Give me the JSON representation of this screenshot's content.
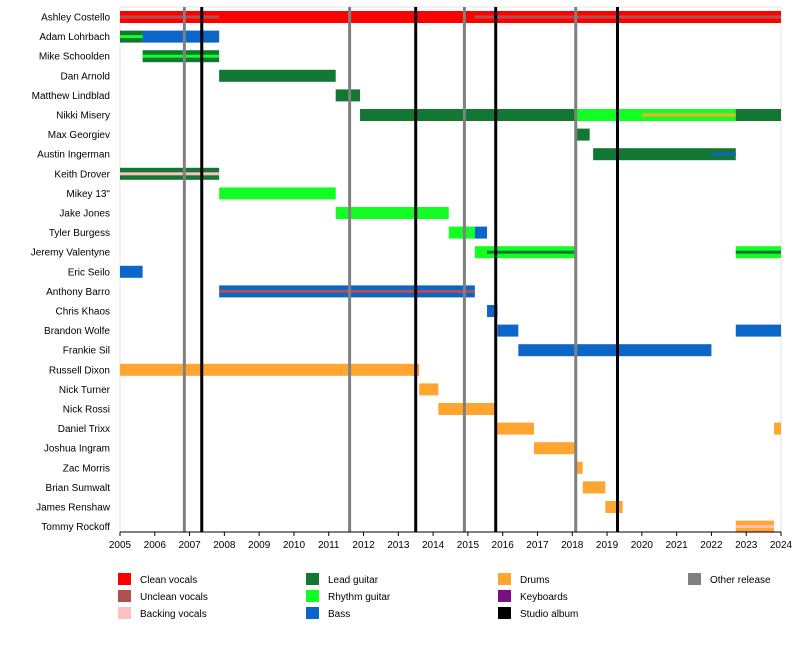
{
  "chart_data": {
    "type": "timeline",
    "x_axis": {
      "min": 2005,
      "max": 2024,
      "ticks": [
        "2005",
        "2006",
        "2007",
        "2008",
        "2009",
        "2010",
        "2011",
        "2012",
        "2013",
        "2014",
        "2015",
        "2016",
        "2017",
        "2018",
        "2019",
        "2020",
        "2021",
        "2022",
        "2023",
        "2024"
      ]
    },
    "grid": false,
    "legend_position": "bottom",
    "roles": [
      {
        "id": "clean",
        "label": "Clean vocals",
        "color": "#ff0000"
      },
      {
        "id": "unclean",
        "label": "Unclean vocals",
        "color": "#b05050"
      },
      {
        "id": "backing",
        "label": "Backing vocals",
        "color": "#ffc0c0"
      },
      {
        "id": "lead",
        "label": "Lead guitar",
        "color": "#117733"
      },
      {
        "id": "rhythm",
        "label": "Rhythm guitar",
        "color": "#11ff22"
      },
      {
        "id": "bass",
        "label": "Bass",
        "color": "#0b66c8"
      },
      {
        "id": "drums",
        "label": "Drums",
        "color": "#ffa530"
      },
      {
        "id": "keys",
        "label": "Keyboards",
        "color": "#7a0f80"
      },
      {
        "id": "studio",
        "label": "Studio album",
        "color": "#000000"
      },
      {
        "id": "other",
        "label": "Other release",
        "color": "#808080"
      }
    ],
    "releases": {
      "studio": [
        2007.35,
        2013.5,
        2015.8,
        2019.3
      ],
      "other": [
        2006.85,
        2011.6,
        2014.9,
        2018.1
      ]
    },
    "members": [
      {
        "name": "Ashley Costello",
        "segments": [
          {
            "start": 2005,
            "end": 2024,
            "role": "clean"
          },
          {
            "start": 2005,
            "end": 2007.85,
            "role": "unclean",
            "stripe": true
          },
          {
            "start": 2015.2,
            "end": 2024,
            "role": "unclean",
            "stripe": true
          }
        ]
      },
      {
        "name": "Adam Lohrbach",
        "segments": [
          {
            "start": 2005,
            "end": 2005.65,
            "role": "lead"
          },
          {
            "start": 2005.65,
            "end": 2007.85,
            "role": "bass"
          },
          {
            "start": 2005,
            "end": 2005.65,
            "role": "rhythm",
            "stripe": true
          },
          {
            "start": 2005.65,
            "end": 2007.85,
            "role": "bass",
            "stripe": true
          }
        ]
      },
      {
        "name": "Mike Schoolden",
        "segments": [
          {
            "start": 2005.65,
            "end": 2007.85,
            "role": "lead"
          },
          {
            "start": 2005.65,
            "end": 2007.85,
            "role": "rhythm",
            "stripe": true
          }
        ]
      },
      {
        "name": "Dan Arnold",
        "segments": [
          {
            "start": 2007.85,
            "end": 2011.2,
            "role": "lead"
          }
        ]
      },
      {
        "name": "Matthew Lindblad",
        "segments": [
          {
            "start": 2011.2,
            "end": 2011.9,
            "role": "lead"
          }
        ]
      },
      {
        "name": "Nikki Misery",
        "segments": [
          {
            "start": 2011.9,
            "end": 2024,
            "role": "lead"
          },
          {
            "start": 2018.1,
            "end": 2022.7,
            "role": "rhythm"
          },
          {
            "start": 2020,
            "end": 2022.7,
            "role": "drums",
            "stripe": true
          }
        ]
      },
      {
        "name": "Max Georgiev",
        "segments": [
          {
            "start": 2018.1,
            "end": 2018.5,
            "role": "lead"
          }
        ]
      },
      {
        "name": "Austin Ingerman",
        "segments": [
          {
            "start": 2018.6,
            "end": 2022.7,
            "role": "lead"
          },
          {
            "start": 2022.0,
            "end": 2022.7,
            "role": "bass",
            "stripe": true
          }
        ]
      },
      {
        "name": "Keith Drover",
        "segments": [
          {
            "start": 2005,
            "end": 2007.85,
            "role": "lead"
          },
          {
            "start": 2005,
            "end": 2007.85,
            "role": "backing",
            "stripe": true
          }
        ]
      },
      {
        "name": "Mikey 13\"",
        "segments": [
          {
            "start": 2007.85,
            "end": 2011.2,
            "role": "rhythm"
          }
        ]
      },
      {
        "name": "Jake Jones",
        "segments": [
          {
            "start": 2011.2,
            "end": 2014.45,
            "role": "rhythm"
          }
        ]
      },
      {
        "name": "Tyler Burgess",
        "segments": [
          {
            "start": 2014.45,
            "end": 2015.2,
            "role": "rhythm"
          },
          {
            "start": 2015.2,
            "end": 2015.55,
            "role": "bass"
          },
          {
            "start": 2015.2,
            "end": 2015.55,
            "role": "bass",
            "stripe": true
          }
        ]
      },
      {
        "name": "Jeremy Valentyne",
        "segments": [
          {
            "start": 2015.2,
            "end": 2018.1,
            "role": "rhythm"
          },
          {
            "start": 2015.55,
            "end": 2018.1,
            "role": "lead",
            "stripe": true
          },
          {
            "start": 2022.7,
            "end": 2024,
            "role": "rhythm"
          },
          {
            "start": 2022.7,
            "end": 2024,
            "role": "lead",
            "stripe": true
          }
        ]
      },
      {
        "name": "Eric Seilo",
        "segments": [
          {
            "start": 2005,
            "end": 2005.65,
            "role": "bass"
          }
        ]
      },
      {
        "name": "Anthony Barro",
        "segments": [
          {
            "start": 2007.85,
            "end": 2015.2,
            "role": "bass"
          },
          {
            "start": 2007.85,
            "end": 2015.2,
            "role": "unclean",
            "stripe": true
          }
        ]
      },
      {
        "name": "Chris Khaos",
        "segments": [
          {
            "start": 2015.55,
            "end": 2015.85,
            "role": "bass"
          }
        ]
      },
      {
        "name": "Brandon Wolfe",
        "segments": [
          {
            "start": 2015.85,
            "end": 2016.45,
            "role": "bass"
          },
          {
            "start": 2022.7,
            "end": 2024,
            "role": "bass"
          }
        ]
      },
      {
        "name": "Frankie Sil",
        "segments": [
          {
            "start": 2016.45,
            "end": 2022.0,
            "role": "bass"
          }
        ]
      },
      {
        "name": "Russell Dixon",
        "segments": [
          {
            "start": 2005,
            "end": 2013.6,
            "role": "drums"
          }
        ]
      },
      {
        "name": "Nick Turner",
        "segments": [
          {
            "start": 2013.6,
            "end": 2014.15,
            "role": "drums"
          }
        ]
      },
      {
        "name": "Nick Rossi",
        "segments": [
          {
            "start": 2014.15,
            "end": 2015.8,
            "role": "drums"
          }
        ]
      },
      {
        "name": "Daniel Trixx",
        "segments": [
          {
            "start": 2015.8,
            "end": 2016.9,
            "role": "drums"
          },
          {
            "start": 2023.8,
            "end": 2024,
            "role": "drums"
          }
        ]
      },
      {
        "name": "Joshua Ingram",
        "segments": [
          {
            "start": 2016.9,
            "end": 2018.1,
            "role": "drums"
          }
        ]
      },
      {
        "name": "Zac Morris",
        "segments": [
          {
            "start": 2018.1,
            "end": 2018.3,
            "role": "drums"
          }
        ]
      },
      {
        "name": "Brian Sumwalt",
        "segments": [
          {
            "start": 2018.3,
            "end": 2018.95,
            "role": "drums"
          }
        ]
      },
      {
        "name": "James Renshaw",
        "segments": [
          {
            "start": 2018.95,
            "end": 2019.45,
            "role": "drums"
          }
        ]
      },
      {
        "name": "Tommy Rockoff",
        "segments": [
          {
            "start": 2022.7,
            "end": 2023.8,
            "role": "drums"
          },
          {
            "start": 2022.7,
            "end": 2023.8,
            "role": "backing",
            "stripe": true
          }
        ]
      }
    ]
  }
}
